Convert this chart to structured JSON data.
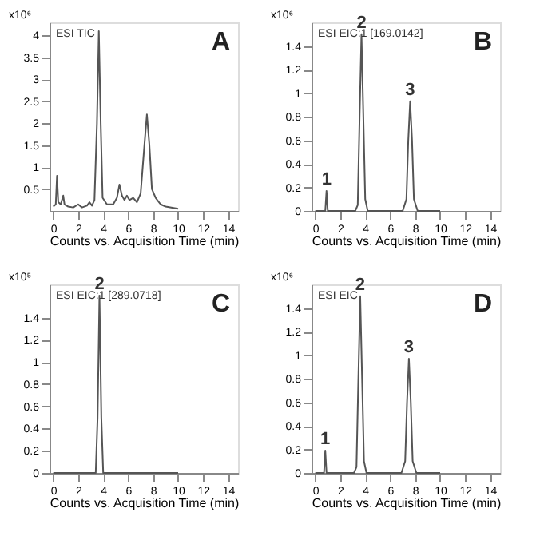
{
  "chart_data": [
    {
      "type": "line",
      "title": "ESI TIC",
      "ylabel": "x10⁶",
      "xlabel": "Counts vs. Acquisition Time (min)",
      "annotations": [
        "A"
      ],
      "xlim": [
        -0.3,
        14.8
      ],
      "xticks": [
        0,
        2,
        4,
        6,
        8,
        10,
        12,
        14
      ],
      "ylim": [
        0,
        4.3
      ],
      "yticks": [
        0.5,
        1,
        1.5,
        2,
        2.5,
        3,
        3.5,
        4
      ],
      "grid": false,
      "series": [
        {
          "color": "#555555",
          "x": [
            0,
            0.2,
            0.3,
            0.4,
            0.6,
            0.8,
            0.9,
            1.2,
            1.6,
            2.0,
            2.3,
            2.7,
            2.9,
            3.1,
            3.3,
            3.5,
            3.65,
            3.8,
            3.95,
            4.3,
            4.8,
            5.1,
            5.3,
            5.5,
            5.7,
            5.9,
            6.1,
            6.4,
            6.7,
            7.0,
            7.3,
            7.5,
            7.7,
            7.9,
            8.2,
            8.6,
            9.0,
            10.0
          ],
          "values": [
            0.1,
            0.15,
            0.8,
            0.2,
            0.15,
            0.35,
            0.15,
            0.1,
            0.08,
            0.15,
            0.08,
            0.12,
            0.2,
            0.12,
            0.25,
            2.0,
            4.1,
            2.0,
            0.3,
            0.15,
            0.15,
            0.3,
            0.6,
            0.35,
            0.25,
            0.35,
            0.25,
            0.3,
            0.2,
            0.4,
            1.5,
            2.2,
            1.5,
            0.5,
            0.3,
            0.15,
            0.1,
            0.05
          ]
        }
      ]
    },
    {
      "type": "line",
      "title": "ESI EIC:1 [169.0142]",
      "ylabel": "x10⁶",
      "xlabel": "Counts vs. Acquisition Time (min)",
      "annotations": [
        "B",
        {
          "text": "1",
          "x": 0.9,
          "y": 0.17
        },
        {
          "text": "2",
          "x": 3.7,
          "y": 1.5
        },
        {
          "text": "3",
          "x": 7.6,
          "y": 0.93
        }
      ],
      "xlim": [
        -0.3,
        14.8
      ],
      "xticks": [
        0,
        2,
        4,
        6,
        8,
        10,
        12,
        14
      ],
      "ylim": [
        0,
        1.6
      ],
      "yticks": [
        0,
        0.2,
        0.4,
        0.6,
        0.8,
        1,
        1.2,
        1.4
      ],
      "grid": false,
      "series": [
        {
          "color": "#555555",
          "x": [
            0,
            0.8,
            0.9,
            1.0,
            3.2,
            3.4,
            3.55,
            3.7,
            3.85,
            4.0,
            4.2,
            7.0,
            7.3,
            7.45,
            7.6,
            7.75,
            7.9,
            8.2,
            10.0
          ],
          "values": [
            0,
            0,
            0.17,
            0,
            0,
            0.05,
            0.8,
            1.5,
            0.8,
            0.1,
            0,
            0,
            0.1,
            0.6,
            0.93,
            0.6,
            0.1,
            0,
            0
          ]
        }
      ]
    },
    {
      "type": "line",
      "title": "ESI EIC:1 [289.0718]",
      "ylabel": "x10⁵",
      "xlabel": "Counts vs. Acquisition Time (min)",
      "annotations": [
        "C",
        {
          "text": "2",
          "x": 3.7,
          "y": 1.6
        }
      ],
      "xlim": [
        -0.3,
        14.8
      ],
      "xticks": [
        0,
        2,
        4,
        6,
        8,
        10,
        12,
        14
      ],
      "ylim": [
        0,
        1.7
      ],
      "yticks": [
        0,
        0.2,
        0.4,
        0.6,
        0.8,
        1,
        1.2,
        1.4
      ],
      "grid": false,
      "series": [
        {
          "color": "#555555",
          "x": [
            0,
            3.4,
            3.55,
            3.7,
            3.85,
            4.0,
            10.0
          ],
          "values": [
            0,
            0,
            0.5,
            1.6,
            0.5,
            0,
            0
          ]
        }
      ]
    },
    {
      "type": "line",
      "title": "ESI EIC",
      "ylabel": "x10⁶",
      "xlabel": "Counts vs. Acquisition Time (min)",
      "annotations": [
        "D",
        {
          "text": "1",
          "x": 0.8,
          "y": 0.19
        },
        {
          "text": "2",
          "x": 3.6,
          "y": 1.5
        },
        {
          "text": "3",
          "x": 7.5,
          "y": 0.97
        }
      ],
      "xlim": [
        -0.3,
        14.8
      ],
      "xticks": [
        0,
        2,
        4,
        6,
        8,
        10,
        12,
        14
      ],
      "ylim": [
        0,
        1.6
      ],
      "yticks": [
        0,
        0.2,
        0.4,
        0.6,
        0.8,
        1,
        1.2,
        1.4
      ],
      "grid": false,
      "series": [
        {
          "color": "#555555",
          "x": [
            0,
            0.7,
            0.8,
            0.9,
            3.1,
            3.3,
            3.45,
            3.6,
            3.75,
            3.9,
            4.1,
            6.9,
            7.2,
            7.35,
            7.5,
            7.65,
            7.8,
            8.1,
            10.0
          ],
          "values": [
            0,
            0,
            0.19,
            0,
            0,
            0.05,
            0.8,
            1.5,
            0.8,
            0.1,
            0,
            0,
            0.1,
            0.6,
            0.97,
            0.6,
            0.1,
            0,
            0
          ]
        }
      ]
    }
  ]
}
